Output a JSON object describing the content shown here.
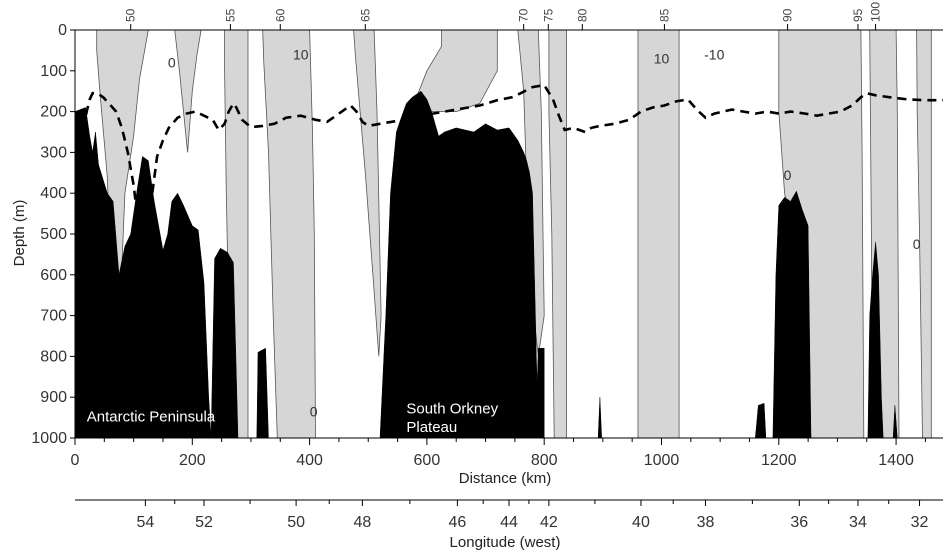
{
  "chart_data": {
    "type": "area",
    "xlabel": "Distance (km)",
    "ylabel": "Depth (m)",
    "x2label": "Longitude (west)",
    "xlim": [
      0,
      1480
    ],
    "ylim": [
      0,
      1000
    ],
    "y_inverted": true,
    "x_ticks": [
      0,
      200,
      400,
      600,
      800,
      1000,
      1200,
      1400
    ],
    "y_ticks": [
      0,
      100,
      200,
      300,
      400,
      500,
      600,
      700,
      800,
      900,
      1000
    ],
    "longitude_ticks": [
      {
        "x": 120,
        "label": "54"
      },
      {
        "x": 220,
        "label": "52"
      },
      {
        "x": 377,
        "label": "50"
      },
      {
        "x": 490,
        "label": "48"
      },
      {
        "x": 652,
        "label": "46"
      },
      {
        "x": 740,
        "label": "44"
      },
      {
        "x": 808,
        "label": "42"
      },
      {
        "x": 965,
        "label": "40"
      },
      {
        "x": 1075,
        "label": "38"
      },
      {
        "x": 1235,
        "label": "36"
      },
      {
        "x": 1335,
        "label": "34"
      },
      {
        "x": 1440,
        "label": "32"
      }
    ],
    "stations": [
      {
        "x": 95,
        "label": "50"
      },
      {
        "x": 265,
        "label": "55"
      },
      {
        "x": 350,
        "label": "60"
      },
      {
        "x": 495,
        "label": "65"
      },
      {
        "x": 765,
        "label": "70"
      },
      {
        "x": 807,
        "label": "75"
      },
      {
        "x": 865,
        "label": "80"
      },
      {
        "x": 1005,
        "label": "85"
      },
      {
        "x": 1215,
        "label": "90"
      },
      {
        "x": 1335,
        "label": "95"
      },
      {
        "x": 1365,
        "label": "100"
      }
    ],
    "contour_labels": [
      {
        "x": 165,
        "y": 80,
        "label": "0"
      },
      {
        "x": 385,
        "y": 60,
        "label": "10"
      },
      {
        "x": 1000,
        "y": 70,
        "label": "10"
      },
      {
        "x": 1090,
        "y": 60,
        "label": "-10"
      },
      {
        "x": 1215,
        "y": 355,
        "label": "0"
      },
      {
        "x": 1435,
        "y": 525,
        "label": "0"
      },
      {
        "x": 407,
        "y": 935,
        "label": "0"
      }
    ],
    "region_labels": [
      {
        "label": "Antarctic Peninsula",
        "x": 20,
        "y": 960
      },
      {
        "label": "South Orkney",
        "x": 565,
        "y": 940
      },
      {
        "label": "Plateau",
        "x": 565,
        "y": 985
      }
    ],
    "shaded_regions": [
      {
        "name": "west-band",
        "points": [
          [
            37,
            0
          ],
          [
            125,
            0
          ],
          [
            120,
            40
          ],
          [
            110,
            120
          ],
          [
            100,
            260
          ],
          [
            85,
            400
          ],
          [
            78,
            650
          ],
          [
            75,
            810
          ],
          [
            62,
            620
          ],
          [
            55,
            360
          ],
          [
            43,
            160
          ],
          [
            37,
            50
          ]
        ]
      },
      {
        "name": "band-175",
        "points": [
          [
            170,
            0
          ],
          [
            215,
            0
          ],
          [
            208,
            60
          ],
          [
            200,
            150
          ],
          [
            192,
            300
          ],
          [
            185,
            200
          ],
          [
            178,
            100
          ]
        ]
      },
      {
        "name": "band-255",
        "points": [
          [
            255,
            0
          ],
          [
            295,
            0
          ],
          [
            295,
            1000
          ],
          [
            270,
            1000
          ],
          [
            262,
            700
          ],
          [
            258,
            400
          ],
          [
            255,
            100
          ]
        ]
      },
      {
        "name": "band-330",
        "points": [
          [
            320,
            0
          ],
          [
            400,
            0
          ],
          [
            405,
            250
          ],
          [
            408,
            500
          ],
          [
            410,
            1000
          ],
          [
            345,
            1000
          ],
          [
            338,
            700
          ],
          [
            330,
            300
          ],
          [
            322,
            80
          ]
        ]
      },
      {
        "name": "band-485",
        "points": [
          [
            475,
            0
          ],
          [
            510,
            0
          ],
          [
            515,
            200
          ],
          [
            522,
            700
          ],
          [
            518,
            800
          ],
          [
            508,
            600
          ],
          [
            495,
            350
          ],
          [
            485,
            180
          ],
          [
            478,
            60
          ]
        ]
      },
      {
        "name": "band-570",
        "points": [
          [
            625,
            0
          ],
          [
            720,
            0
          ],
          [
            720,
            100
          ],
          [
            690,
            180
          ],
          [
            650,
            200
          ],
          [
            600,
            200
          ],
          [
            570,
            210
          ],
          [
            600,
            100
          ],
          [
            625,
            40
          ]
        ]
      },
      {
        "name": "band-760",
        "points": [
          [
            755,
            0
          ],
          [
            790,
            0
          ],
          [
            795,
            200
          ],
          [
            798,
            500
          ],
          [
            800,
            700
          ],
          [
            790,
            800
          ],
          [
            775,
            600
          ],
          [
            765,
            150
          ]
        ]
      },
      {
        "name": "band-810",
        "points": [
          [
            808,
            0
          ],
          [
            838,
            0
          ],
          [
            838,
            1000
          ],
          [
            817,
            1000
          ],
          [
            813,
            500
          ],
          [
            808,
            200
          ]
        ]
      },
      {
        "name": "band-960",
        "points": [
          [
            960,
            0
          ],
          [
            1030,
            0
          ],
          [
            1030,
            1000
          ],
          [
            960,
            1000
          ]
        ]
      },
      {
        "name": "band-1200",
        "points": [
          [
            1200,
            0
          ],
          [
            1340,
            0
          ],
          [
            1342,
            300
          ],
          [
            1345,
            1000
          ],
          [
            1255,
            1000
          ],
          [
            1235,
            600
          ],
          [
            1210,
            400
          ],
          [
            1200,
            200
          ]
        ]
      },
      {
        "name": "band-1360",
        "points": [
          [
            1355,
            0
          ],
          [
            1400,
            0
          ],
          [
            1402,
            200
          ],
          [
            1405,
            1000
          ],
          [
            1360,
            1000
          ],
          [
            1358,
            500
          ]
        ]
      },
      {
        "name": "band-1435",
        "points": [
          [
            1435,
            0
          ],
          [
            1460,
            0
          ],
          [
            1460,
            1000
          ],
          [
            1445,
            1000
          ],
          [
            1440,
            500
          ],
          [
            1436,
            200
          ]
        ]
      }
    ],
    "bathymetry_polygons": [
      {
        "name": "antarctic-peninsula",
        "points": [
          [
            0,
            1000
          ],
          [
            0,
            200
          ],
          [
            18,
            190
          ],
          [
            25,
            260
          ],
          [
            30,
            300
          ],
          [
            35,
            250
          ],
          [
            40,
            330
          ],
          [
            55,
            400
          ],
          [
            65,
            420
          ],
          [
            75,
            600
          ],
          [
            85,
            530
          ],
          [
            95,
            500
          ],
          [
            105,
            400
          ],
          [
            115,
            310
          ],
          [
            125,
            320
          ],
          [
            135,
            420
          ],
          [
            150,
            540
          ],
          [
            158,
            500
          ],
          [
            165,
            420
          ],
          [
            175,
            400
          ],
          [
            185,
            430
          ],
          [
            200,
            480
          ],
          [
            210,
            490
          ],
          [
            220,
            620
          ],
          [
            228,
            900
          ],
          [
            232,
            1000
          ]
        ]
      },
      {
        "name": "ridge-240",
        "points": [
          [
            232,
            1000
          ],
          [
            238,
            560
          ],
          [
            248,
            535
          ],
          [
            260,
            545
          ],
          [
            270,
            570
          ],
          [
            278,
            1000
          ]
        ]
      },
      {
        "name": "ridge-310",
        "points": [
          [
            310,
            1000
          ],
          [
            312,
            790
          ],
          [
            325,
            780
          ],
          [
            330,
            1000
          ]
        ]
      },
      {
        "name": "south-orkney-plateau",
        "points": [
          [
            520,
            1000
          ],
          [
            530,
            700
          ],
          [
            538,
            400
          ],
          [
            548,
            250
          ],
          [
            555,
            220
          ],
          [
            565,
            180
          ],
          [
            575,
            165
          ],
          [
            590,
            150
          ],
          [
            600,
            170
          ],
          [
            608,
            200
          ],
          [
            620,
            260
          ],
          [
            630,
            250
          ],
          [
            650,
            240
          ],
          [
            680,
            250
          ],
          [
            700,
            230
          ],
          [
            720,
            245
          ],
          [
            740,
            240
          ],
          [
            755,
            270
          ],
          [
            765,
            300
          ],
          [
            770,
            320
          ],
          [
            775,
            350
          ],
          [
            780,
            400
          ],
          [
            790,
            1000
          ]
        ]
      },
      {
        "name": "spike-795",
        "points": [
          [
            785,
            1000
          ],
          [
            790,
            780
          ],
          [
            800,
            780
          ],
          [
            800,
            1000
          ]
        ]
      },
      {
        "name": "spike-895",
        "points": [
          [
            892,
            1000
          ],
          [
            895,
            900
          ],
          [
            898,
            1000
          ]
        ]
      },
      {
        "name": "spike-1175",
        "points": [
          [
            1160,
            1000
          ],
          [
            1165,
            920
          ],
          [
            1175,
            915
          ],
          [
            1178,
            1000
          ]
        ]
      },
      {
        "name": "ridge-1230",
        "points": [
          [
            1190,
            1000
          ],
          [
            1195,
            600
          ],
          [
            1200,
            430
          ],
          [
            1210,
            410
          ],
          [
            1220,
            420
          ],
          [
            1230,
            395
          ],
          [
            1240,
            440
          ],
          [
            1250,
            480
          ],
          [
            1255,
            1000
          ]
        ]
      },
      {
        "name": "spike-1370",
        "points": [
          [
            1352,
            1000
          ],
          [
            1355,
            700
          ],
          [
            1360,
            600
          ],
          [
            1365,
            520
          ],
          [
            1370,
            600
          ],
          [
            1375,
            900
          ],
          [
            1378,
            1000
          ]
        ]
      },
      {
        "name": "spike-1400",
        "points": [
          [
            1395,
            1000
          ],
          [
            1398,
            920
          ],
          [
            1402,
            1000
          ]
        ]
      }
    ],
    "dashed_line": [
      [
        10,
        280
      ],
      [
        15,
        240
      ],
      [
        20,
        200
      ],
      [
        25,
        170
      ],
      [
        30,
        155
      ],
      [
        38,
        155
      ],
      [
        48,
        165
      ],
      [
        58,
        180
      ],
      [
        70,
        200
      ],
      [
        80,
        240
      ],
      [
        90,
        300
      ],
      [
        100,
        380
      ],
      [
        110,
        500
      ],
      [
        120,
        560
      ],
      [
        130,
        420
      ],
      [
        140,
        310
      ],
      [
        150,
        270
      ],
      [
        160,
        240
      ],
      [
        175,
        215
      ],
      [
        190,
        205
      ],
      [
        205,
        200
      ],
      [
        220,
        210
      ],
      [
        235,
        220
      ],
      [
        245,
        245
      ],
      [
        255,
        230
      ],
      [
        262,
        200
      ],
      [
        270,
        180
      ],
      [
        275,
        190
      ],
      [
        285,
        220
      ],
      [
        300,
        238
      ],
      [
        320,
        235
      ],
      [
        340,
        230
      ],
      [
        360,
        215
      ],
      [
        385,
        210
      ],
      [
        410,
        220
      ],
      [
        430,
        225
      ],
      [
        450,
        205
      ],
      [
        470,
        185
      ],
      [
        480,
        200
      ],
      [
        490,
        225
      ],
      [
        500,
        235
      ],
      [
        520,
        230
      ],
      [
        540,
        225
      ],
      [
        560,
        220
      ],
      [
        580,
        215
      ],
      [
        610,
        205
      ],
      [
        650,
        195
      ],
      [
        690,
        185
      ],
      [
        720,
        172
      ],
      [
        745,
        165
      ],
      [
        760,
        155
      ],
      [
        780,
        140
      ],
      [
        800,
        135
      ],
      [
        815,
        170
      ],
      [
        825,
        210
      ],
      [
        835,
        245
      ],
      [
        850,
        240
      ],
      [
        870,
        250
      ],
      [
        880,
        240
      ],
      [
        895,
        235
      ],
      [
        920,
        230
      ],
      [
        945,
        220
      ],
      [
        965,
        200
      ],
      [
        985,
        190
      ],
      [
        1005,
        185
      ],
      [
        1025,
        175
      ],
      [
        1045,
        170
      ],
      [
        1060,
        195
      ],
      [
        1075,
        215
      ],
      [
        1090,
        205
      ],
      [
        1105,
        200
      ],
      [
        1120,
        195
      ],
      [
        1140,
        200
      ],
      [
        1160,
        205
      ],
      [
        1180,
        200
      ],
      [
        1200,
        205
      ],
      [
        1220,
        200
      ],
      [
        1245,
        205
      ],
      [
        1265,
        210
      ],
      [
        1285,
        205
      ],
      [
        1305,
        200
      ],
      [
        1325,
        185
      ],
      [
        1340,
        165
      ],
      [
        1350,
        155
      ],
      [
        1365,
        160
      ],
      [
        1390,
        165
      ],
      [
        1420,
        170
      ],
      [
        1450,
        172
      ],
      [
        1480,
        172
      ]
    ]
  }
}
